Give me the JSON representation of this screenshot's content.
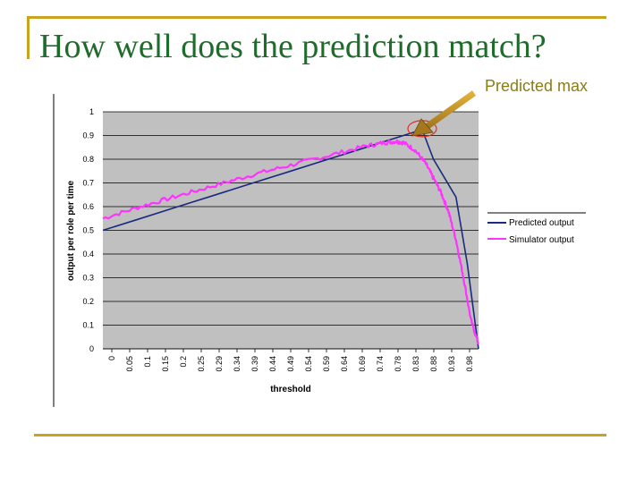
{
  "slide": {
    "title": "How well does the prediction match?",
    "callout": "Predicted max",
    "accent_color": "#c8a51e",
    "title_color": "#1f6b2c",
    "callout_color": "#8b7d10"
  },
  "chart_data": {
    "type": "line",
    "title": "",
    "xlabel": "threshold",
    "ylabel": "output per role per time",
    "xlim": [
      0,
      1
    ],
    "ylim": [
      0,
      1
    ],
    "yticks": [
      "0",
      "0.1",
      "0.2",
      "0.3",
      "0.4",
      "0.5",
      "0.6",
      "0.7",
      "0.8",
      "0.9",
      "1"
    ],
    "xticks": [
      "0",
      "0.05",
      "0.1",
      "0.15",
      "0.2",
      "0.25",
      "0.29",
      "0.34",
      "0.39",
      "0.44",
      "0.49",
      "0.54",
      "0.59",
      "0.64",
      "0.69",
      "0.74",
      "0.78",
      "0.83",
      "0.88",
      "0.93",
      "0.98"
    ],
    "grid": true,
    "plot_background": "#c0c0c0",
    "legend_position": "right",
    "series": [
      {
        "name": "Predicted output",
        "color": "#1a2a80",
        "x": [
          0,
          0.1,
          0.2,
          0.3,
          0.4,
          0.5,
          0.6,
          0.7,
          0.8,
          0.85,
          0.88,
          0.91,
          0.94,
          0.97,
          1.0
        ],
        "y": [
          0.5,
          0.55,
          0.6,
          0.65,
          0.7,
          0.75,
          0.8,
          0.85,
          0.9,
          0.925,
          0.8,
          0.72,
          0.64,
          0.36,
          0.0
        ]
      },
      {
        "name": "Simulator output",
        "color": "#ff33ff",
        "x": [
          0,
          0.1,
          0.2,
          0.3,
          0.4,
          0.5,
          0.6,
          0.7,
          0.75,
          0.78,
          0.8,
          0.83,
          0.86,
          0.88,
          0.9,
          0.92,
          0.94,
          0.96,
          0.98,
          1.0
        ],
        "y": [
          0.55,
          0.6,
          0.645,
          0.69,
          0.735,
          0.775,
          0.815,
          0.855,
          0.87,
          0.875,
          0.87,
          0.84,
          0.78,
          0.72,
          0.66,
          0.58,
          0.46,
          0.3,
          0.12,
          0.02
        ]
      }
    ]
  }
}
